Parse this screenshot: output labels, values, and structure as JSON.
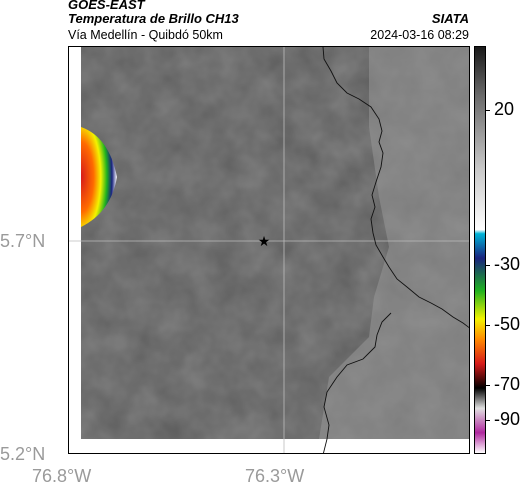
{
  "header": {
    "satellite": "GOES-EAST",
    "product": "Temperatura de Brillo CH13",
    "institution": "SIATA",
    "subtitle": "Vía Medellín - Quibdó 50km",
    "datetime": "2024-03-16 08:29"
  },
  "map": {
    "lat_labels": [
      "5.7°N",
      "5.2°N"
    ],
    "lon_labels": [
      "76.8°W",
      "76.3°W"
    ],
    "marker": "star-marker",
    "background_color": "#7c7c7c",
    "border_color": "#000000",
    "gridline_color": "#bdbdbd"
  },
  "colorbar": {
    "labels": [
      "20",
      "-30",
      "-50",
      "-70",
      "-90"
    ],
    "colors": {
      "top_dark": "#1a1a1a",
      "white": "#ffffff",
      "cyan": "#00b4d8",
      "blue": "#1a237e",
      "green": "#1fb21f",
      "yellow": "#f3f300",
      "orange": "#ff8a00",
      "red": "#d61a1a",
      "black": "#000000",
      "magenta": "#b0289e"
    }
  }
}
